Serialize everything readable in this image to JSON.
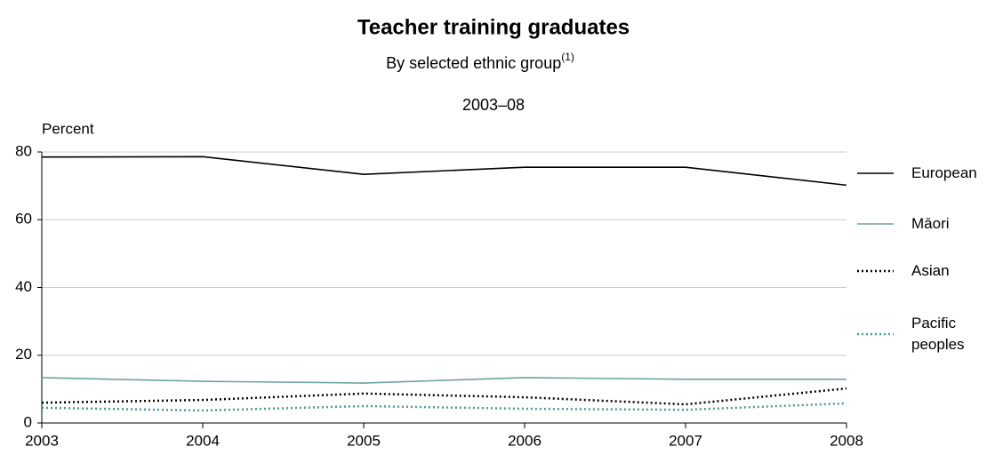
{
  "chart_data": {
    "type": "line",
    "title": "Teacher training graduates",
    "subtitle": "By selected ethnic group",
    "subtitle_note": "(1)",
    "period": "2003–08",
    "y_label": "Percent",
    "x": [
      2003,
      2004,
      2005,
      2006,
      2007,
      2008
    ],
    "xlim": [
      2003,
      2008
    ],
    "xticks": [
      2003,
      2004,
      2005,
      2006,
      2007,
      2008
    ],
    "ylim": [
      0,
      80
    ],
    "yticks": [
      0,
      20,
      40,
      60,
      80
    ],
    "grid": true,
    "legend": "right",
    "series": [
      {
        "name": "European",
        "color": "#000000",
        "style": "solid",
        "values": [
          78.5,
          78.6,
          73.4,
          75.5,
          75.5,
          70.2
        ]
      },
      {
        "name": "Māori",
        "color": "#6fa3a0",
        "style": "solid",
        "values": [
          13.4,
          12.3,
          11.8,
          13.4,
          12.9,
          12.9
        ]
      },
      {
        "name": "Asian",
        "color": "#000000",
        "style": "dotted",
        "values": [
          6.0,
          6.8,
          8.7,
          7.6,
          5.5,
          10.2
        ]
      },
      {
        "name": "Pacific peoples",
        "color": "#4a9a94",
        "style": "dotted",
        "values": [
          4.5,
          3.7,
          5.0,
          4.2,
          3.9,
          5.8
        ]
      }
    ]
  }
}
